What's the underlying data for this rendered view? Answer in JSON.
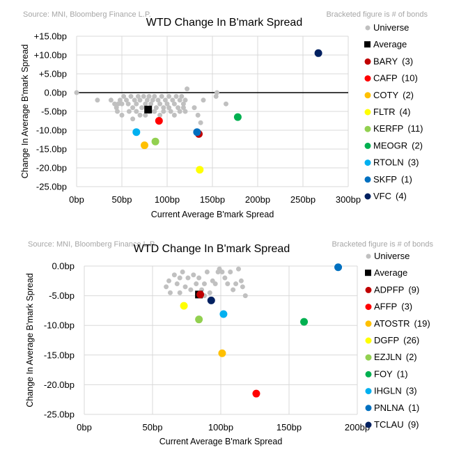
{
  "chart_data": [
    {
      "type": "scatter",
      "source": "Source: MNI, Bloomberg Finance L.P.",
      "note": "Bracketed figure is # of bonds",
      "title": "WTD Change In B'mark Spread",
      "xlabel": "Current Average B'mark Spread",
      "ylabel": "Change In Average B'mark Spread",
      "xlim": [
        0,
        300
      ],
      "ylim": [
        -25,
        15
      ],
      "xticks": [
        0,
        50,
        100,
        150,
        200,
        250,
        300
      ],
      "yticks": [
        15,
        10,
        5,
        0,
        -5,
        -10,
        -15,
        -20,
        -25
      ],
      "xtick_labels": [
        "0bp",
        "50bp",
        "100bp",
        "150bp",
        "200bp",
        "250bp",
        "300bp"
      ],
      "ytick_labels": [
        "+15.0bp",
        "+10.0bp",
        "+5.0bp",
        "0.0bp",
        "-5.0bp",
        "-10.0bp",
        "-15.0bp",
        "-20.0bp",
        "-25.0bp"
      ],
      "positive_tick_color": "#e00000",
      "zero_line": true,
      "grid": true,
      "legend_position": "right",
      "universe": {
        "name": "Universe",
        "color": "#c0c0c0",
        "points": [
          [
            0,
            0
          ],
          [
            23,
            -2
          ],
          [
            38,
            -2
          ],
          [
            42,
            -3
          ],
          [
            44,
            -4
          ],
          [
            46,
            -3
          ],
          [
            48,
            -2
          ],
          [
            50,
            -3
          ],
          [
            52,
            -1
          ],
          [
            55,
            -2
          ],
          [
            57,
            -3
          ],
          [
            60,
            -1
          ],
          [
            62,
            -4
          ],
          [
            64,
            -2
          ],
          [
            66,
            -3
          ],
          [
            68,
            -1
          ],
          [
            70,
            -2
          ],
          [
            72,
            -4
          ],
          [
            74,
            -1
          ],
          [
            76,
            -3
          ],
          [
            78,
            -2
          ],
          [
            80,
            -1
          ],
          [
            82,
            -3
          ],
          [
            84,
            -2
          ],
          [
            86,
            -1
          ],
          [
            88,
            -4
          ],
          [
            90,
            -2
          ],
          [
            92,
            -3
          ],
          [
            94,
            -1
          ],
          [
            96,
            -4
          ],
          [
            98,
            -2
          ],
          [
            100,
            -3
          ],
          [
            102,
            -1
          ],
          [
            104,
            -5
          ],
          [
            106,
            -2
          ],
          [
            108,
            -3
          ],
          [
            110,
            -1
          ],
          [
            112,
            -4
          ],
          [
            114,
            -2
          ],
          [
            116,
            -1
          ],
          [
            118,
            -3
          ],
          [
            120,
            -2
          ],
          [
            122,
            1
          ],
          [
            45,
            -5
          ],
          [
            50,
            -6
          ],
          [
            58,
            -5
          ],
          [
            62,
            -7
          ],
          [
            66,
            -5
          ],
          [
            70,
            -6
          ],
          [
            76,
            -6
          ],
          [
            80,
            -5
          ],
          [
            86,
            -5
          ],
          [
            92,
            -6
          ],
          [
            96,
            -5
          ],
          [
            102,
            -4
          ],
          [
            108,
            -6
          ],
          [
            114,
            -5
          ],
          [
            118,
            -4
          ],
          [
            120,
            -5
          ],
          [
            134,
            -6
          ],
          [
            137,
            -8
          ],
          [
            140,
            -2
          ],
          [
            155,
            0
          ],
          [
            165,
            -3
          ],
          [
            154,
            -1
          ],
          [
            130,
            -4
          ]
        ]
      },
      "average": {
        "name": "Average",
        "color": "#000000",
        "x": 79,
        "y": -4.5
      },
      "series": [
        {
          "name": "BARY",
          "count": "(3)",
          "color": "#c00000",
          "x": 135,
          "y": -11
        },
        {
          "name": "CAFP",
          "count": "(10)",
          "color": "#ff0000",
          "x": 91,
          "y": -7.5
        },
        {
          "name": "COTY",
          "count": "(2)",
          "color": "#ffc000",
          "x": 75,
          "y": -14
        },
        {
          "name": "FLTR",
          "count": "(4)",
          "color": "#ffff00",
          "x": 136,
          "y": -20.5
        },
        {
          "name": "KERFP",
          "count": "(11)",
          "color": "#92d050",
          "x": 87,
          "y": -13
        },
        {
          "name": "MEOGR",
          "count": "(2)",
          "color": "#00b050",
          "x": 178,
          "y": -6.5
        },
        {
          "name": "RTOLN",
          "count": "(3)",
          "color": "#00b0f0",
          "x": 66,
          "y": -10.5
        },
        {
          "name": "SKFP",
          "count": "(1)",
          "color": "#0070c0",
          "x": 133,
          "y": -10.5
        },
        {
          "name": "VFC",
          "count": "(4)",
          "color": "#002060",
          "x": 267,
          "y": 10.5
        }
      ]
    },
    {
      "type": "scatter",
      "source": "Source: MNI, Bloomberg Finance L.P.",
      "note": "Bracketed figure is # of bonds",
      "title": "WTD Change In B'mark Spread",
      "xlabel": "Current Average B'mark Spread",
      "ylabel": "Change In Average B'mark Spread",
      "xlim": [
        0,
        200
      ],
      "ylim": [
        -25,
        0
      ],
      "xticks": [
        0,
        50,
        100,
        150,
        200
      ],
      "yticks": [
        0,
        -5,
        -10,
        -15,
        -20,
        -25
      ],
      "xtick_labels": [
        "0bp",
        "50bp",
        "100bp",
        "150bp",
        "200bp"
      ],
      "ytick_labels": [
        "0.0bp",
        "-5.0bp",
        "-10.0bp",
        "-15.0bp",
        "-20.0bp",
        "-25.0bp"
      ],
      "positive_tick_color": "#e00000",
      "zero_line": false,
      "grid": true,
      "legend_position": "right",
      "universe": {
        "name": "Universe",
        "color": "#c0c0c0",
        "points": [
          [
            60,
            -3.5
          ],
          [
            62,
            -2.5
          ],
          [
            63,
            -4.5
          ],
          [
            66,
            -1.5
          ],
          [
            68,
            -3
          ],
          [
            70,
            -2
          ],
          [
            72,
            -1
          ],
          [
            74,
            -3.5
          ],
          [
            76,
            -2
          ],
          [
            78,
            -4
          ],
          [
            80,
            -1.5
          ],
          [
            82,
            -3
          ],
          [
            84,
            -2
          ],
          [
            86,
            -4
          ],
          [
            88,
            -3
          ],
          [
            90,
            -1
          ],
          [
            92,
            -4.5
          ],
          [
            94,
            -2.5
          ],
          [
            96,
            -3
          ],
          [
            98,
            -1
          ],
          [
            99,
            -0.5
          ],
          [
            101,
            -1
          ],
          [
            103,
            -2
          ],
          [
            105,
            -3
          ],
          [
            107,
            -1
          ],
          [
            109,
            -4
          ],
          [
            111,
            -3
          ],
          [
            113,
            -0.5
          ],
          [
            115,
            -2.5
          ],
          [
            116,
            -3.5
          ],
          [
            118,
            -5
          ],
          [
            70,
            -4.5
          ],
          [
            88,
            -5
          ]
        ]
      },
      "average": {
        "name": "Average",
        "color": "#000000",
        "x": 84,
        "y": -4.8
      },
      "series": [
        {
          "name": "ADPFP",
          "count": "(9)",
          "color": "#c00000",
          "x": 85,
          "y": -4.8
        },
        {
          "name": "AFFP",
          "count": "(3)",
          "color": "#ff0000",
          "x": 126,
          "y": -21.5
        },
        {
          "name": "ATOSTR",
          "count": "(19)",
          "color": "#ffc000",
          "x": 101,
          "y": -14.7
        },
        {
          "name": "DGFP",
          "count": "(26)",
          "color": "#ffff00",
          "x": 73,
          "y": -6.7
        },
        {
          "name": "EZJLN",
          "count": "(2)",
          "color": "#92d050",
          "x": 84,
          "y": -9
        },
        {
          "name": "FOY",
          "count": "(1)",
          "color": "#00b050",
          "x": 161,
          "y": -9.4
        },
        {
          "name": "IHGLN",
          "count": "(3)",
          "color": "#00b0f0",
          "x": 102,
          "y": -8.1
        },
        {
          "name": "PNLNA",
          "count": "(1)",
          "color": "#0070c0",
          "x": 186,
          "y": -0.2
        },
        {
          "name": "TCLAU",
          "count": "(9)",
          "color": "#002060",
          "x": 93,
          "y": -5.8
        }
      ]
    }
  ]
}
